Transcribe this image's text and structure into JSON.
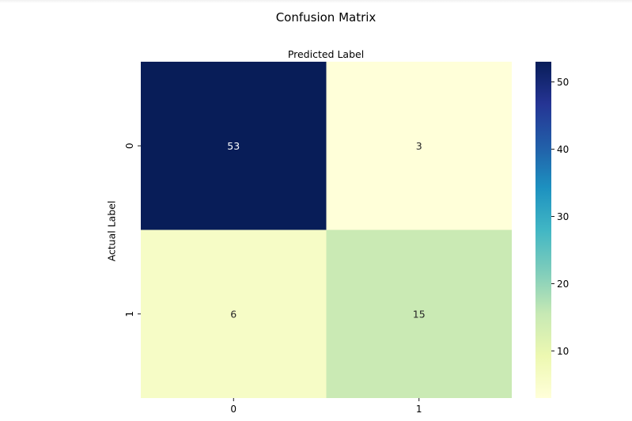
{
  "chart_data": {
    "type": "heatmap",
    "title": "Confusion Matrix",
    "xlabel": "Predicted Label",
    "ylabel": "Actual Label",
    "x_categories": [
      "0",
      "1"
    ],
    "y_categories": [
      "0",
      "1"
    ],
    "values": [
      [
        53,
        3
      ],
      [
        6,
        15
      ]
    ],
    "annotations": [
      [
        "53",
        "3"
      ],
      [
        "6",
        "15"
      ]
    ],
    "colormap": "YlGnBu",
    "cmap_stops": [
      "#ffffd9",
      "#edf8b1",
      "#c7e9b4",
      "#7fcdbb",
      "#41b6c4",
      "#1d91c0",
      "#225ea8",
      "#253494",
      "#081d58"
    ],
    "vmin": 3,
    "vmax": 53,
    "colorbar_ticks": [
      10,
      20,
      30,
      40,
      50
    ],
    "x_axis_position": "bottom",
    "xlabel_position": "top",
    "grid": false,
    "legend": "colorbar-right"
  }
}
